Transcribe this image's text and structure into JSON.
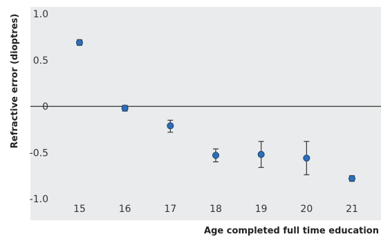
{
  "chart_data": {
    "type": "scatter",
    "title": "",
    "xlabel": "Age completed full time education",
    "ylabel": "Refractive error (dioptres)",
    "x": [
      15,
      16,
      17,
      18,
      19,
      20,
      21
    ],
    "x_tick_labels": [
      "15",
      "16",
      "17",
      "18",
      "19",
      "20",
      "21"
    ],
    "y_ticks": [
      1.0,
      0.5,
      0,
      -0.5,
      -1.0
    ],
    "y_tick_labels": [
      "1.0",
      "0.5",
      "0",
      "-0.5",
      "-1.0"
    ],
    "ylim": [
      -1.0,
      1.0
    ],
    "xlim": [
      14.3,
      21.7
    ],
    "grid": false,
    "reference_line_y": 0,
    "series": [
      {
        "values": [
          0.69,
          -0.02,
          -0.21,
          -0.53,
          -0.52,
          -0.56,
          -0.78
        ],
        "error_low": [
          0.66,
          -0.05,
          -0.28,
          -0.6,
          -0.66,
          -0.74,
          -0.81
        ],
        "error_high": [
          0.72,
          0.01,
          -0.15,
          -0.46,
          -0.38,
          -0.38,
          -0.75
        ]
      }
    ],
    "colors": {
      "panel_background": "#e9ebec",
      "marker_fill": "#2c6fb8",
      "marker_stroke": "#1b3f6a",
      "error_bar": "#333333",
      "reference_line": "#333333"
    }
  }
}
